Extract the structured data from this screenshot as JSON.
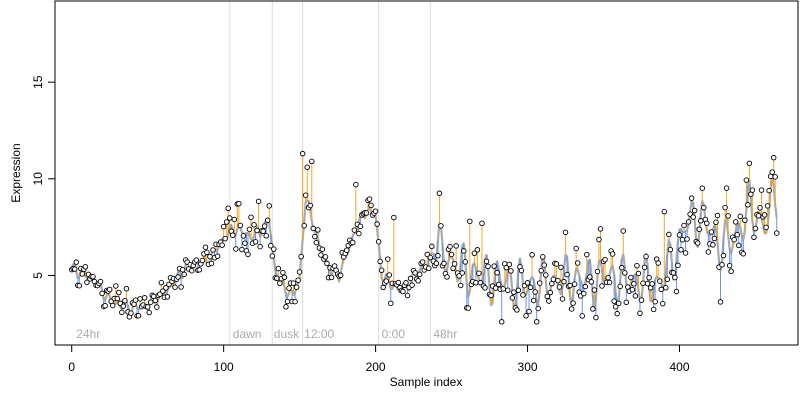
{
  "chart_data": {
    "type": "scatter",
    "title": "",
    "xlabel": "Sample index",
    "ylabel": "Expression",
    "xlim": [
      -11,
      478
    ],
    "ylim": [
      1.4,
      19.2
    ],
    "xticks": [
      0,
      100,
      200,
      300,
      400
    ],
    "yticks": [
      5,
      10,
      15
    ],
    "grid": false,
    "colors": {
      "fitted_line": "#aaaaaa",
      "residual_positive": "#f5a623",
      "residual_negative": "#6495ed",
      "marker_fill": "#ffffff",
      "marker_edge": "#000000",
      "divider": "#dddddd",
      "region_label": "#aaaaaa"
    },
    "dividers": [
      104,
      132,
      152,
      202,
      236
    ],
    "region_labels": [
      {
        "x": 3,
        "text": "24hr"
      },
      {
        "x": 106,
        "text": "dawn"
      },
      {
        "x": 133,
        "text": "dusk"
      },
      {
        "x": 153,
        "text": "12:00"
      },
      {
        "x": 204,
        "text": "0:00"
      },
      {
        "x": 238,
        "text": "48hr"
      }
    ],
    "anchors": [
      [
        0,
        5.4
      ],
      [
        4,
        5.2
      ],
      [
        10,
        5.0
      ],
      [
        16,
        4.6
      ],
      [
        22,
        4.0
      ],
      [
        27,
        3.6
      ],
      [
        33,
        3.4
      ],
      [
        40,
        3.3
      ],
      [
        46,
        3.4
      ],
      [
        52,
        3.6
      ],
      [
        58,
        3.9
      ],
      [
        64,
        4.3
      ],
      [
        70,
        4.9
      ],
      [
        76,
        5.5
      ],
      [
        82,
        5.8
      ],
      [
        88,
        5.6
      ],
      [
        94,
        6.2
      ],
      [
        100,
        6.9
      ],
      [
        106,
        7.4
      ],
      [
        112,
        7.3
      ],
      [
        118,
        7.0
      ],
      [
        124,
        7.3
      ],
      [
        130,
        7.8
      ],
      [
        134,
        5.2
      ],
      [
        140,
        4.3
      ],
      [
        146,
        4.0
      ],
      [
        150,
        4.8
      ],
      [
        154,
        9.0
      ],
      [
        158,
        8.0
      ],
      [
        164,
        6.2
      ],
      [
        170,
        5.3
      ],
      [
        176,
        5.0
      ],
      [
        182,
        6.3
      ],
      [
        188,
        7.6
      ],
      [
        194,
        8.4
      ],
      [
        200,
        8.1
      ],
      [
        204,
        5.0
      ],
      [
        210,
        4.6
      ],
      [
        216,
        4.2
      ],
      [
        222,
        4.5
      ],
      [
        228,
        5.2
      ],
      [
        234,
        5.6
      ],
      [
        240,
        6.5
      ],
      [
        246,
        6.0
      ],
      [
        252,
        5.5
      ],
      [
        260,
        5.2
      ],
      [
        270,
        5.0
      ],
      [
        280,
        4.8
      ],
      [
        290,
        4.6
      ],
      [
        300,
        4.5
      ],
      [
        310,
        4.6
      ],
      [
        320,
        4.7
      ],
      [
        330,
        4.8
      ],
      [
        340,
        4.8
      ],
      [
        350,
        4.9
      ],
      [
        360,
        4.8
      ],
      [
        370,
        4.7
      ],
      [
        380,
        4.6
      ],
      [
        386,
        4.6
      ],
      [
        392,
        5.3
      ],
      [
        398,
        6.3
      ],
      [
        404,
        7.6
      ],
      [
        410,
        8.0
      ],
      [
        416,
        7.8
      ],
      [
        422,
        7.1
      ],
      [
        428,
        6.5
      ],
      [
        434,
        6.8
      ],
      [
        440,
        7.5
      ],
      [
        446,
        8.5
      ],
      [
        452,
        8.0
      ],
      [
        456,
        7.5
      ],
      [
        462,
        9.0
      ],
      [
        465,
        9.5
      ]
    ],
    "n_samples": 465,
    "wave": [
      {
        "from": 0,
        "to": 240,
        "amplitude": 0.35,
        "period": 6
      },
      {
        "from": 240,
        "to": 465,
        "amplitude": 1.5,
        "period": 8
      }
    ],
    "residual_sd": {
      "stable": 0.3,
      "oscillating": 0.8
    },
    "highlight_points": [
      [
        152,
        11.3
      ],
      [
        155,
        10.6
      ],
      [
        158,
        10.9
      ],
      [
        446,
        10.8
      ],
      [
        463,
        10.1
      ],
      [
        130,
        8.6
      ],
      [
        109,
        8.7
      ],
      [
        187,
        9.7
      ],
      [
        212,
        8.0
      ],
      [
        390,
        8.3
      ],
      [
        363,
        7.3
      ],
      [
        270,
        7.7
      ],
      [
        262,
        7.8
      ]
    ]
  }
}
